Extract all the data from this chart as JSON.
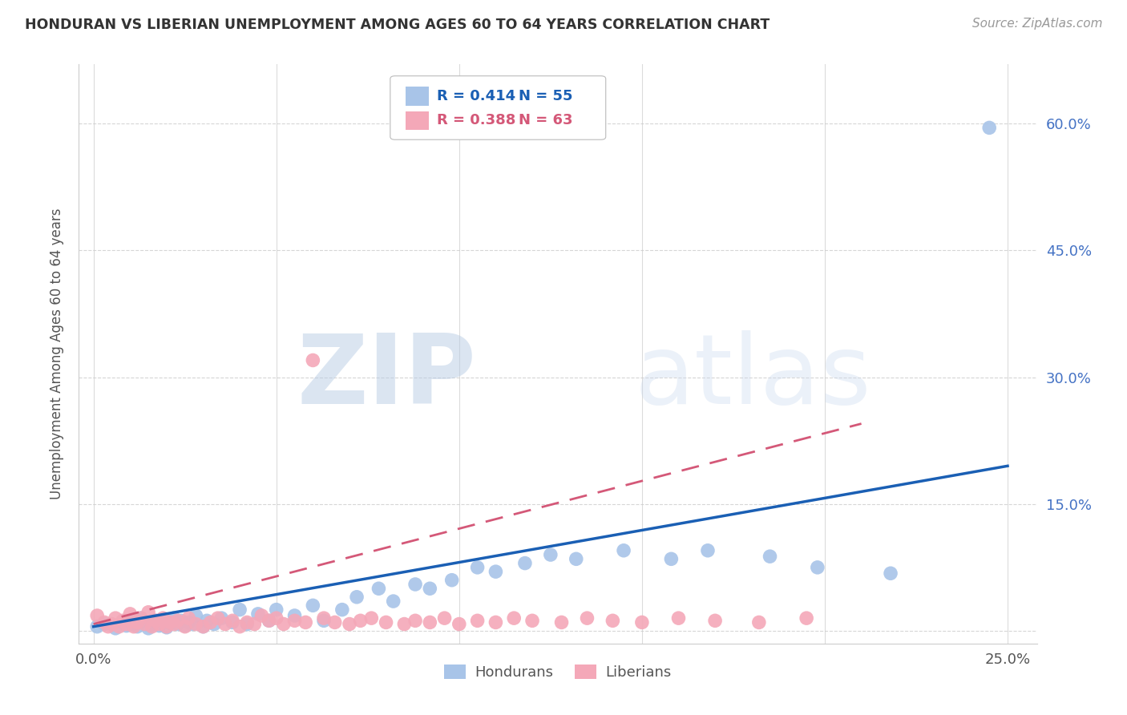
{
  "title": "HONDURAN VS LIBERIAN UNEMPLOYMENT AMONG AGES 60 TO 64 YEARS CORRELATION CHART",
  "source": "Source: ZipAtlas.com",
  "ylabel": "Unemployment Among Ages 60 to 64 years",
  "watermark_zip": "ZIP",
  "watermark_atlas": "atlas",
  "xlim": [
    -0.004,
    0.258
  ],
  "ylim": [
    -0.015,
    0.67
  ],
  "xtick_positions": [
    0.0,
    0.05,
    0.1,
    0.15,
    0.2,
    0.25
  ],
  "xtick_labels": [
    "0.0%",
    "",
    "",
    "",
    "",
    "25.0%"
  ],
  "ytick_positions": [
    0.0,
    0.15,
    0.3,
    0.45,
    0.6
  ],
  "ytick_labels": [
    "",
    "15.0%",
    "30.0%",
    "45.0%",
    "60.0%"
  ],
  "honduran_color": "#a8c4e8",
  "liberian_color": "#f4a8b8",
  "honduran_line_color": "#1a5fb4",
  "liberian_line_color": "#d45878",
  "legend_R_honduran": "R = 0.414",
  "legend_N_honduran": "N = 55",
  "legend_R_liberian": "R = 0.388",
  "legend_N_liberian": "N = 63",
  "legend_label_honduran": "Hondurans",
  "legend_label_liberian": "Liberians",
  "grid_color": "#cccccc",
  "background_color": "#ffffff",
  "title_color": "#333333",
  "right_tick_color": "#4472c4",
  "honduran_x": [
    0.001,
    0.003,
    0.006,
    0.008,
    0.009,
    0.01,
    0.011,
    0.012,
    0.013,
    0.015,
    0.016,
    0.017,
    0.018,
    0.019,
    0.02,
    0.021,
    0.022,
    0.023,
    0.024,
    0.025,
    0.026,
    0.027,
    0.028,
    0.03,
    0.031,
    0.033,
    0.035,
    0.038,
    0.04,
    0.042,
    0.045,
    0.048,
    0.05,
    0.055,
    0.06,
    0.063,
    0.068,
    0.072,
    0.078,
    0.082,
    0.088,
    0.092,
    0.098,
    0.105,
    0.11,
    0.118,
    0.125,
    0.132,
    0.145,
    0.158,
    0.168,
    0.185,
    0.198,
    0.218,
    0.245
  ],
  "honduran_y": [
    0.005,
    0.008,
    0.003,
    0.01,
    0.006,
    0.012,
    0.008,
    0.005,
    0.015,
    0.003,
    0.008,
    0.012,
    0.006,
    0.01,
    0.004,
    0.009,
    0.015,
    0.008,
    0.012,
    0.006,
    0.01,
    0.008,
    0.018,
    0.005,
    0.012,
    0.008,
    0.015,
    0.01,
    0.025,
    0.008,
    0.02,
    0.012,
    0.025,
    0.018,
    0.03,
    0.012,
    0.025,
    0.04,
    0.05,
    0.035,
    0.055,
    0.05,
    0.06,
    0.075,
    0.07,
    0.08,
    0.09,
    0.085,
    0.095,
    0.085,
    0.095,
    0.088,
    0.075,
    0.068,
    0.595
  ],
  "liberian_x": [
    0.001,
    0.003,
    0.004,
    0.005,
    0.006,
    0.007,
    0.008,
    0.009,
    0.01,
    0.011,
    0.012,
    0.013,
    0.014,
    0.015,
    0.016,
    0.017,
    0.018,
    0.019,
    0.02,
    0.021,
    0.022,
    0.023,
    0.025,
    0.026,
    0.028,
    0.03,
    0.032,
    0.034,
    0.036,
    0.038,
    0.04,
    0.042,
    0.044,
    0.046,
    0.048,
    0.05,
    0.052,
    0.055,
    0.058,
    0.06,
    0.063,
    0.066,
    0.07,
    0.073,
    0.076,
    0.08,
    0.085,
    0.088,
    0.092,
    0.096,
    0.1,
    0.105,
    0.11,
    0.115,
    0.12,
    0.128,
    0.135,
    0.142,
    0.15,
    0.16,
    0.17,
    0.182,
    0.195
  ],
  "liberian_y": [
    0.018,
    0.01,
    0.005,
    0.008,
    0.015,
    0.005,
    0.012,
    0.008,
    0.02,
    0.005,
    0.01,
    0.015,
    0.008,
    0.022,
    0.005,
    0.012,
    0.008,
    0.015,
    0.005,
    0.01,
    0.008,
    0.012,
    0.005,
    0.015,
    0.008,
    0.005,
    0.01,
    0.015,
    0.008,
    0.012,
    0.005,
    0.01,
    0.008,
    0.018,
    0.012,
    0.015,
    0.008,
    0.012,
    0.01,
    0.32,
    0.015,
    0.01,
    0.008,
    0.012,
    0.015,
    0.01,
    0.008,
    0.012,
    0.01,
    0.015,
    0.008,
    0.012,
    0.01,
    0.015,
    0.012,
    0.01,
    0.015,
    0.012,
    0.01,
    0.015,
    0.012,
    0.01,
    0.015
  ]
}
